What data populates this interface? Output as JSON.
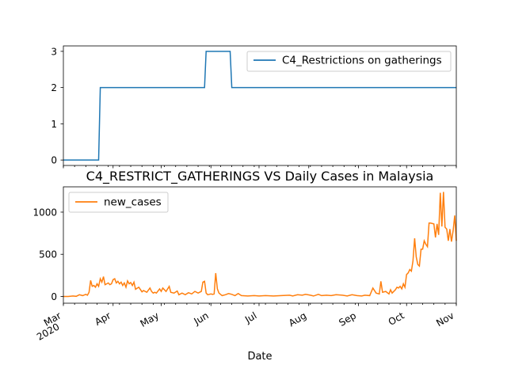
{
  "chart_data": [
    {
      "type": "line",
      "title": "",
      "xlabel": "",
      "ylabel": "",
      "legend": "top-right",
      "grid": false,
      "ylim": [
        -0.15,
        3.15
      ],
      "yticks": [
        0,
        1,
        2,
        3
      ],
      "series": [
        {
          "name": "C4_Restrictions on gatherings",
          "color": "#1f77b4",
          "points": [
            [
              "2020-03-01",
              0
            ],
            [
              "2020-03-23",
              0
            ],
            [
              "2020-03-24",
              2
            ],
            [
              "2020-05-28",
              2
            ],
            [
              "2020-05-29",
              3
            ],
            [
              "2020-06-13",
              3
            ],
            [
              "2020-06-14",
              2
            ],
            [
              "2020-11-01",
              2
            ]
          ]
        }
      ]
    },
    {
      "type": "line",
      "title": "C4_RESTRICT_GATHERINGS VS Daily Cases in Malaysia",
      "xlabel": "Date",
      "ylabel": "",
      "legend": "top-left",
      "grid": false,
      "ylim": [
        -80,
        1300
      ],
      "yticks": [
        0,
        500,
        1000
      ],
      "xrange": [
        "2020-03-01",
        "2020-11-01"
      ],
      "xticks": [
        {
          "date": "2020-03-01",
          "label": "Mar",
          "sublabel": "2020"
        },
        {
          "date": "2020-04-01",
          "label": "Apr"
        },
        {
          "date": "2020-05-01",
          "label": "May"
        },
        {
          "date": "2020-06-01",
          "label": "Jun"
        },
        {
          "date": "2020-07-01",
          "label": "Jul"
        },
        {
          "date": "2020-08-01",
          "label": "Aug"
        },
        {
          "date": "2020-09-01",
          "label": "Sep"
        },
        {
          "date": "2020-10-01",
          "label": "Oct"
        },
        {
          "date": "2020-11-01",
          "label": "Nov"
        }
      ],
      "series": [
        {
          "name": "new_cases",
          "color": "#ff7f0e",
          "points": [
            [
              "2020-03-01",
              0
            ],
            [
              "2020-03-04",
              0
            ],
            [
              "2020-03-07",
              5
            ],
            [
              "2020-03-09",
              2
            ],
            [
              "2020-03-11",
              20
            ],
            [
              "2020-03-13",
              10
            ],
            [
              "2020-03-15",
              25
            ],
            [
              "2020-03-16",
              15
            ],
            [
              "2020-03-17",
              50
            ],
            [
              "2020-03-18",
              190
            ],
            [
              "2020-03-19",
              120
            ],
            [
              "2020-03-20",
              130
            ],
            [
              "2020-03-21",
              110
            ],
            [
              "2020-03-22",
              150
            ],
            [
              "2020-03-23",
              120
            ],
            [
              "2020-03-24",
              210
            ],
            [
              "2020-03-25",
              170
            ],
            [
              "2020-03-26",
              235
            ],
            [
              "2020-03-27",
              140
            ],
            [
              "2020-03-28",
              150
            ],
            [
              "2020-03-29",
              160
            ],
            [
              "2020-03-30",
              140
            ],
            [
              "2020-03-31",
              150
            ],
            [
              "2020-04-01",
              200
            ],
            [
              "2020-04-02",
              210
            ],
            [
              "2020-04-03",
              160
            ],
            [
              "2020-04-04",
              180
            ],
            [
              "2020-04-05",
              150
            ],
            [
              "2020-04-06",
              170
            ],
            [
              "2020-04-07",
              130
            ],
            [
              "2020-04-08",
              160
            ],
            [
              "2020-04-09",
              110
            ],
            [
              "2020-04-10",
              185
            ],
            [
              "2020-04-11",
              150
            ],
            [
              "2020-04-12",
              165
            ],
            [
              "2020-04-13",
              130
            ],
            [
              "2020-04-14",
              170
            ],
            [
              "2020-04-15",
              85
            ],
            [
              "2020-04-17",
              110
            ],
            [
              "2020-04-19",
              55
            ],
            [
              "2020-04-20",
              70
            ],
            [
              "2020-04-22",
              50
            ],
            [
              "2020-04-24",
              100
            ],
            [
              "2020-04-25",
              60
            ],
            [
              "2020-04-26",
              40
            ],
            [
              "2020-04-27",
              50
            ],
            [
              "2020-04-28",
              40
            ],
            [
              "2020-04-30",
              90
            ],
            [
              "2020-05-01",
              60
            ],
            [
              "2020-05-02",
              100
            ],
            [
              "2020-05-04",
              60
            ],
            [
              "2020-05-06",
              120
            ],
            [
              "2020-05-07",
              50
            ],
            [
              "2020-05-09",
              40
            ],
            [
              "2020-05-11",
              65
            ],
            [
              "2020-05-12",
              20
            ],
            [
              "2020-05-14",
              40
            ],
            [
              "2020-05-16",
              20
            ],
            [
              "2020-05-18",
              45
            ],
            [
              "2020-05-20",
              30
            ],
            [
              "2020-05-22",
              60
            ],
            [
              "2020-05-24",
              40
            ],
            [
              "2020-05-26",
              60
            ],
            [
              "2020-05-27",
              170
            ],
            [
              "2020-05-28",
              180
            ],
            [
              "2020-05-29",
              40
            ],
            [
              "2020-05-30",
              20
            ],
            [
              "2020-06-01",
              30
            ],
            [
              "2020-06-02",
              25
            ],
            [
              "2020-06-03",
              30
            ],
            [
              "2020-06-04",
              277
            ],
            [
              "2020-06-05",
              90
            ],
            [
              "2020-06-06",
              40
            ],
            [
              "2020-06-08",
              10
            ],
            [
              "2020-06-10",
              20
            ],
            [
              "2020-06-12",
              35
            ],
            [
              "2020-06-14",
              25
            ],
            [
              "2020-06-16",
              10
            ],
            [
              "2020-06-18",
              35
            ],
            [
              "2020-06-20",
              10
            ],
            [
              "2020-06-24",
              5
            ],
            [
              "2020-06-28",
              10
            ],
            [
              "2020-07-01",
              5
            ],
            [
              "2020-07-05",
              10
            ],
            [
              "2020-07-10",
              5
            ],
            [
              "2020-07-15",
              10
            ],
            [
              "2020-07-20",
              15
            ],
            [
              "2020-07-22",
              5
            ],
            [
              "2020-07-25",
              20
            ],
            [
              "2020-07-28",
              15
            ],
            [
              "2020-07-30",
              25
            ],
            [
              "2020-08-02",
              15
            ],
            [
              "2020-08-04",
              5
            ],
            [
              "2020-08-07",
              25
            ],
            [
              "2020-08-09",
              10
            ],
            [
              "2020-08-12",
              15
            ],
            [
              "2020-08-15",
              10
            ],
            [
              "2020-08-18",
              20
            ],
            [
              "2020-08-22",
              15
            ],
            [
              "2020-08-25",
              5
            ],
            [
              "2020-08-28",
              20
            ],
            [
              "2020-08-31",
              10
            ],
            [
              "2020-09-03",
              5
            ],
            [
              "2020-09-05",
              15
            ],
            [
              "2020-09-08",
              10
            ],
            [
              "2020-09-10",
              100
            ],
            [
              "2020-09-12",
              40
            ],
            [
              "2020-09-14",
              30
            ],
            [
              "2020-09-15",
              180
            ],
            [
              "2020-09-16",
              50
            ],
            [
              "2020-09-18",
              60
            ],
            [
              "2020-09-20",
              30
            ],
            [
              "2020-09-21",
              80
            ],
            [
              "2020-09-22",
              40
            ],
            [
              "2020-09-24",
              80
            ],
            [
              "2020-09-25",
              110
            ],
            [
              "2020-09-26",
              100
            ],
            [
              "2020-09-27",
              120
            ],
            [
              "2020-09-28",
              90
            ],
            [
              "2020-09-29",
              150
            ],
            [
              "2020-09-30",
              110
            ],
            [
              "2020-10-01",
              260
            ],
            [
              "2020-10-02",
              280
            ],
            [
              "2020-10-03",
              320
            ],
            [
              "2020-10-04",
              300
            ],
            [
              "2020-10-05",
              420
            ],
            [
              "2020-10-06",
              690
            ],
            [
              "2020-10-07",
              470
            ],
            [
              "2020-10-08",
              380
            ],
            [
              "2020-10-09",
              360
            ],
            [
              "2020-10-10",
              560
            ],
            [
              "2020-10-11",
              560
            ],
            [
              "2020-10-12",
              660
            ],
            [
              "2020-10-13",
              620
            ],
            [
              "2020-10-14",
              590
            ],
            [
              "2020-10-15",
              870
            ],
            [
              "2020-10-16",
              870
            ],
            [
              "2020-10-18",
              860
            ],
            [
              "2020-10-19",
              700
            ],
            [
              "2020-10-20",
              860
            ],
            [
              "2020-10-21",
              730
            ],
            [
              "2020-10-22",
              1230
            ],
            [
              "2020-10-23",
              830
            ],
            [
              "2020-10-24",
              1240
            ],
            [
              "2020-10-25",
              820
            ],
            [
              "2020-10-26",
              800
            ],
            [
              "2020-10-27",
              660
            ],
            [
              "2020-10-28",
              800
            ],
            [
              "2020-10-29",
              650
            ],
            [
              "2020-10-30",
              780
            ],
            [
              "2020-10-31",
              960
            ],
            [
              "2020-11-01",
              660
            ]
          ]
        }
      ]
    }
  ]
}
